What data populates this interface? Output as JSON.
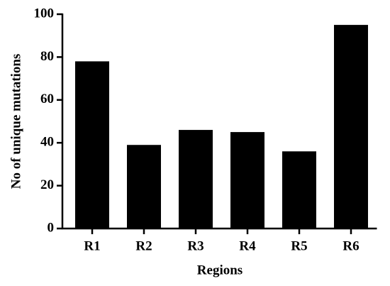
{
  "chart_data": {
    "type": "bar",
    "xlabel": "Regions",
    "ylabel": "No of unique mutations",
    "categories": [
      "R1",
      "R2",
      "R3",
      "R4",
      "R5",
      "R6"
    ],
    "values": [
      78,
      39,
      46,
      45,
      36,
      95
    ],
    "color": "#000000",
    "ylim": [
      0,
      100
    ],
    "yticks": [
      0,
      20,
      40,
      60,
      80,
      100
    ],
    "grid": false
  }
}
